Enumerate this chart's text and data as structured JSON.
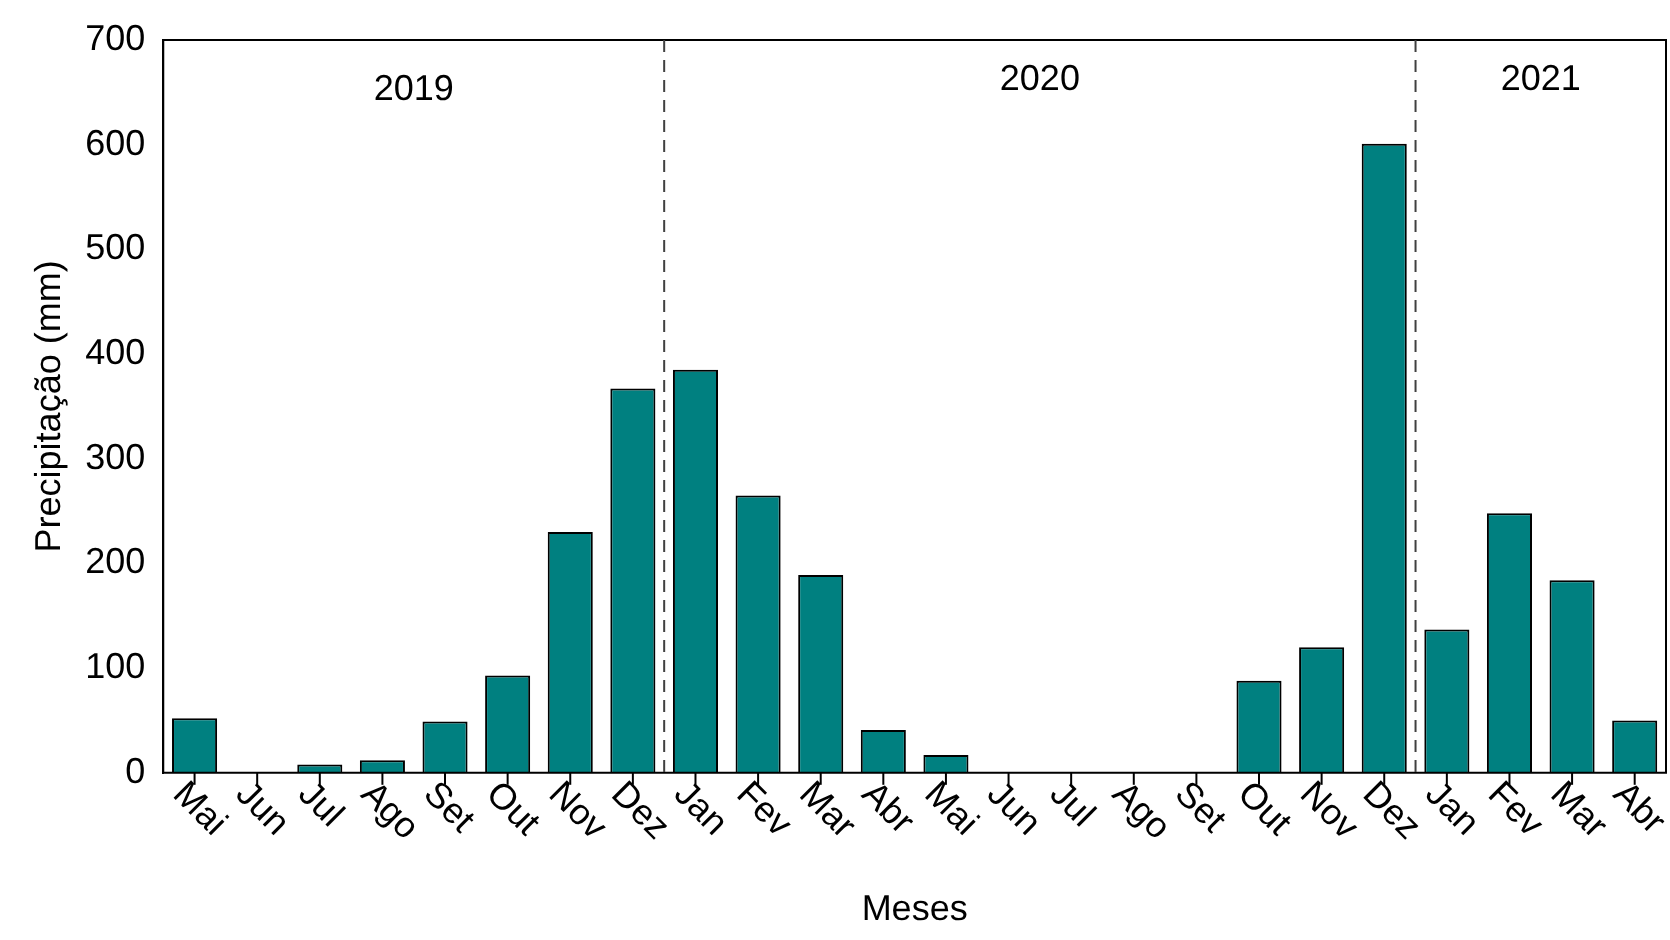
{
  "chart_data": {
    "type": "bar",
    "categories": [
      "Mai",
      "Jun",
      "Jul",
      "Ago",
      "Set",
      "Out",
      "Nov",
      "Dez",
      "Jan",
      "Fev",
      "Mar",
      "Abr",
      "Mai",
      "Jun",
      "Jul",
      "Ago",
      "Set",
      "Out",
      "Nov",
      "Dez",
      "Jan",
      "Fev",
      "Mar",
      "Abr"
    ],
    "values": [
      52,
      0,
      8,
      12,
      49,
      93,
      230,
      367,
      385,
      265,
      189,
      41,
      17,
      0,
      0,
      0,
      0,
      88,
      120,
      601,
      137,
      248,
      184,
      50
    ],
    "color": "#008080",
    "xlabel": "Meses",
    "ylabel": "Precipitação (mm)",
    "ylim": [
      0,
      700
    ],
    "yticks": [
      0,
      100,
      200,
      300,
      400,
      500,
      600,
      700
    ],
    "annotations": [
      "2019",
      "2020",
      "2021"
    ],
    "grid": false,
    "legend": false
  }
}
